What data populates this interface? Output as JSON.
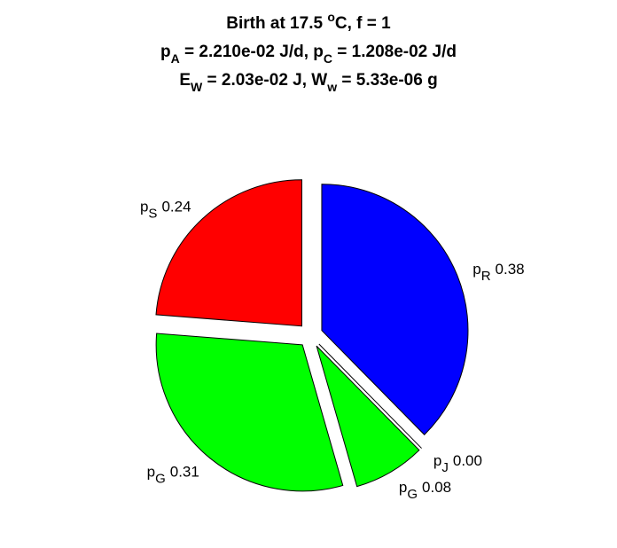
{
  "chart_data": {
    "type": "pie",
    "title": [
      [
        {
          "t": "Birth at 17.5 "
        },
        {
          "t": "o",
          "pos": "sup"
        },
        {
          "t": "C, f = 1"
        }
      ],
      [
        {
          "t": "p"
        },
        {
          "t": "A",
          "pos": "sub"
        },
        {
          "t": " = 2.210e-02 J/d, p"
        },
        {
          "t": "C",
          "pos": "sub"
        },
        {
          "t": " = 1.208e-02 J/d"
        }
      ],
      [
        {
          "t": "E"
        },
        {
          "t": "W",
          "pos": "sub"
        },
        {
          "t": " = 2.03e-02 J, W"
        },
        {
          "t": "w",
          "pos": "sub"
        },
        {
          "t": " = 5.33e-06 g"
        }
      ]
    ],
    "categories": [
      "p",
      "p",
      "p",
      "p",
      "p"
    ],
    "category_subscripts": [
      "S",
      "G",
      "G",
      "J",
      "R"
    ],
    "values": [
      0.24,
      0.31,
      0.08,
      0,
      0.38
    ],
    "value_labels": [
      "0.24",
      "0.31",
      "0.08",
      "0.00",
      "0.38"
    ],
    "colors": [
      "#ff0000",
      "#00ff00",
      "#00ff00",
      "#ff00ff",
      "#0000ff"
    ],
    "start_angle": 90,
    "direction": "counterclockwise",
    "explode": true
  }
}
